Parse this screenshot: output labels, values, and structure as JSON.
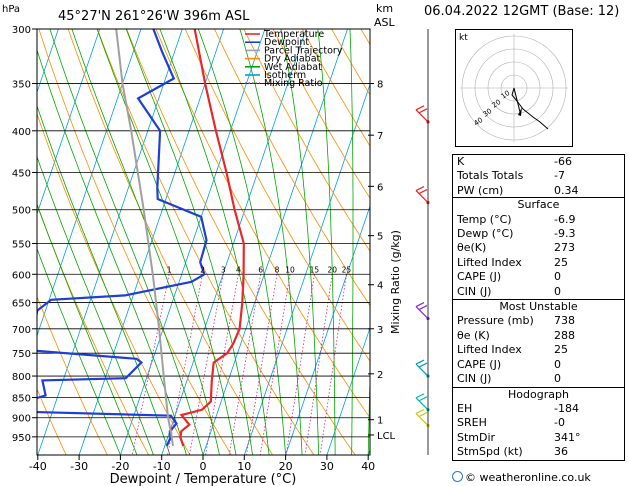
{
  "header": {
    "location": "45°27'N  261°26'W  396m  ASL",
    "date": "06.04.2022  12GMT  (Base: 12)",
    "hpa_label": "hPa",
    "km_label": "km",
    "asl_label": "ASL"
  },
  "chart_data": {
    "type": "skew-t log-p",
    "xlabel": "Dewpoint / Temperature (°C)",
    "ylabel": "hPa",
    "mixing_ratio_label": "Mixing Ratio (g/kg)",
    "x_ticks": [
      -40,
      -30,
      -20,
      -10,
      0,
      10,
      20,
      30,
      40
    ],
    "pressure_levels": [
      300,
      350,
      400,
      450,
      500,
      550,
      600,
      650,
      700,
      750,
      800,
      850,
      900,
      950
    ],
    "km_ticks": [
      {
        "km": "8",
        "p": 350
      },
      {
        "km": "7",
        "p": 405
      },
      {
        "km": "6",
        "p": 468
      },
      {
        "km": "5",
        "p": 538
      },
      {
        "km": "4",
        "p": 618
      },
      {
        "km": "3",
        "p": 700
      },
      {
        "km": "2",
        "p": 795
      },
      {
        "km": "1",
        "p": 905
      },
      {
        "km": "LCL",
        "p": 945
      }
    ],
    "mixing_ratio_values": [
      "1",
      "2",
      "3",
      "4",
      "6",
      "8",
      "10",
      "15",
      "20",
      "25"
    ],
    "legend": [
      {
        "name": "Temperature",
        "color": "#e8282c"
      },
      {
        "name": "Dewpoint",
        "color": "#1f3ed8"
      },
      {
        "name": "Parcel Trajectory",
        "color": "#a0a0a0"
      },
      {
        "name": "Dry Adiabat",
        "color": "#ff8c00"
      },
      {
        "name": "Wet Adiabat",
        "color": "#00a800"
      },
      {
        "name": "Isotherm",
        "color": "#00a0e0"
      },
      {
        "name": "Mixing Ratio",
        "color": "#d0208c"
      }
    ],
    "series": [
      {
        "name": "Temperature",
        "color": "#e8282c",
        "points": [
          [
            -5.5,
            975
          ],
          [
            -6.9,
            952
          ],
          [
            -7.2,
            935
          ],
          [
            -5.8,
            918
          ],
          [
            -8.5,
            893
          ],
          [
            -4.0,
            880
          ],
          [
            -2.5,
            860
          ],
          [
            -4.0,
            810
          ],
          [
            -5.0,
            770
          ],
          [
            -2.5,
            750
          ],
          [
            -1.8,
            730
          ],
          [
            -1.5,
            700
          ],
          [
            -3.0,
            650
          ],
          [
            -5.0,
            600
          ],
          [
            -7.5,
            550
          ],
          [
            -12.5,
            500
          ],
          [
            -17.5,
            450
          ],
          [
            -23.5,
            400
          ],
          [
            -30.0,
            350
          ],
          [
            -37.0,
            300
          ]
        ]
      },
      {
        "name": "Dewpoint",
        "color": "#1f3ed8",
        "points": [
          [
            -9.5,
            975
          ],
          [
            -9.3,
            952
          ],
          [
            -10.0,
            935
          ],
          [
            -9.0,
            915
          ],
          [
            -11.0,
            895
          ],
          [
            -46.0,
            885
          ],
          [
            -46.0,
            855
          ],
          [
            -43.0,
            845
          ],
          [
            -45.0,
            810
          ],
          [
            -25.0,
            805
          ],
          [
            -22.5,
            770
          ],
          [
            -24.0,
            762
          ],
          [
            -49.0,
            745
          ],
          [
            -51.0,
            710
          ],
          [
            -52.0,
            665
          ],
          [
            -49.5,
            645
          ],
          [
            -32.0,
            637
          ],
          [
            -17.0,
            613
          ],
          [
            -14.5,
            600
          ],
          [
            -16.5,
            580
          ],
          [
            -16.8,
            545
          ],
          [
            -20.0,
            510
          ],
          [
            -32.0,
            485
          ],
          [
            -33.0,
            470
          ],
          [
            -37.0,
            400
          ],
          [
            -45.0,
            365
          ],
          [
            -38.0,
            345
          ],
          [
            -43.0,
            320
          ],
          [
            -47.0,
            300
          ]
        ]
      },
      {
        "name": "Parcel Trajectory",
        "color": "#a0a0a0",
        "points": [
          [
            -8.0,
            975
          ],
          [
            -9.3,
            945
          ],
          [
            -11.5,
            900
          ],
          [
            -16.0,
            800
          ],
          [
            -21.0,
            700
          ],
          [
            -27.0,
            600
          ],
          [
            -34.5,
            500
          ],
          [
            -44.0,
            400
          ],
          [
            -50.0,
            350
          ],
          [
            -56.0,
            300
          ]
        ]
      }
    ],
    "wind_barbs_p": [
      390,
      490,
      680,
      800,
      880,
      920
    ],
    "hodograph_label": "kt",
    "hodograph_rings": [
      "10",
      "20",
      "30",
      "40"
    ]
  },
  "stats": {
    "basic": [
      {
        "label": "K",
        "value": "-66"
      },
      {
        "label": "Totals Totals",
        "value": "-7"
      },
      {
        "label": "PW (cm)",
        "value": "0.34"
      }
    ],
    "surface": {
      "title": "Surface",
      "rows": [
        {
          "label": "Temp (°C)",
          "value": "-6.9"
        },
        {
          "label": "Dewp (°C)",
          "value": "-9.3"
        },
        {
          "label": "θe(K)",
          "value": "273"
        },
        {
          "label": "Lifted Index",
          "value": "25"
        },
        {
          "label": "CAPE (J)",
          "value": "0"
        },
        {
          "label": "CIN (J)",
          "value": "0"
        }
      ]
    },
    "most_unstable": {
      "title": "Most Unstable",
      "rows": [
        {
          "label": "Pressure (mb)",
          "value": "738"
        },
        {
          "label": "θe (K)",
          "value": "288"
        },
        {
          "label": "Lifted Index",
          "value": "25"
        },
        {
          "label": "CAPE (J)",
          "value": "0"
        },
        {
          "label": "CIN (J)",
          "value": "0"
        }
      ]
    },
    "hodograph": {
      "title": "Hodograph",
      "rows": [
        {
          "label": "EH",
          "value": "-184"
        },
        {
          "label": "SREH",
          "value": "-0"
        },
        {
          "label": "StmDir",
          "value": "341°"
        },
        {
          "label": "StmSpd (kt)",
          "value": "36"
        }
      ]
    }
  },
  "credit": "© weatheronline.co.uk"
}
